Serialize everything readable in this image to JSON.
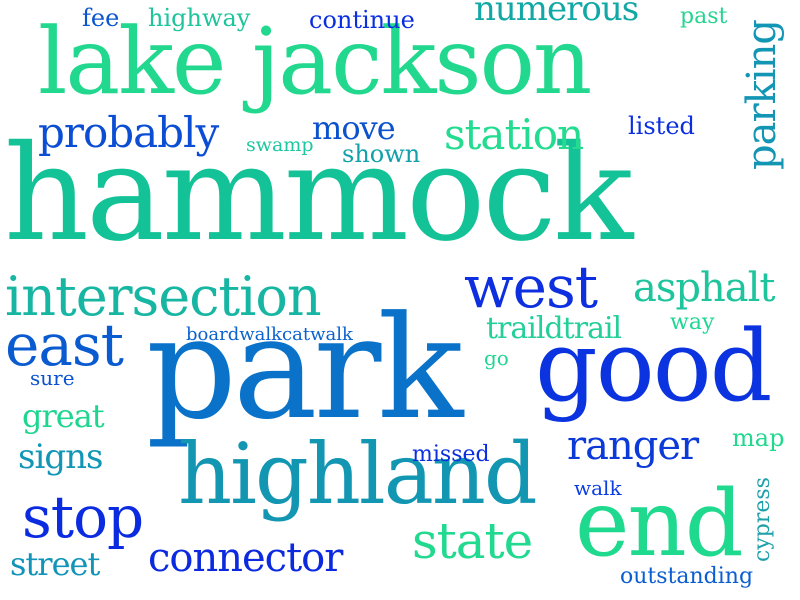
{
  "words": [
    {
      "text": "hammock",
      "color": "#13c296"
    },
    {
      "text": "lake jackson",
      "color": "#22d88e"
    },
    {
      "text": "park",
      "color": "#0a72c8"
    },
    {
      "text": "highland",
      "color": "#1296b2"
    },
    {
      "text": "good",
      "color": "#0b34e0"
    },
    {
      "text": "end",
      "color": "#1fda8e"
    },
    {
      "text": "intersection",
      "color": "#17b6a3"
    },
    {
      "text": "west",
      "color": "#0d2fdf"
    },
    {
      "text": "east",
      "color": "#0b5bd0"
    },
    {
      "text": "stop",
      "color": "#0b2be0"
    },
    {
      "text": "state",
      "color": "#21d98f"
    },
    {
      "text": "connector",
      "color": "#0b2ae0"
    },
    {
      "text": "asphalt",
      "color": "#1ec49c"
    },
    {
      "text": "ranger",
      "color": "#0b3ad9"
    },
    {
      "text": "probably",
      "color": "#0b4ed4"
    },
    {
      "text": "station",
      "color": "#23dc90"
    },
    {
      "text": "parking",
      "color": "#1296b4"
    },
    {
      "text": "numerous",
      "color": "#12a8a6"
    },
    {
      "text": "move",
      "color": "#0b52cc"
    },
    {
      "text": "traildtrail",
      "color": "#24cf9a"
    },
    {
      "text": "great",
      "color": "#1fd690"
    },
    {
      "text": "signs",
      "color": "#1196b6"
    },
    {
      "text": "street",
      "color": "#1294b8"
    },
    {
      "text": "outstanding",
      "color": "#0b5ed0"
    },
    {
      "text": "cypress",
      "color": "#1ea0aa"
    },
    {
      "text": "fee",
      "color": "#0b55ce"
    },
    {
      "text": "highway",
      "color": "#1ec49c"
    },
    {
      "text": "continue",
      "color": "#0b2fe0"
    },
    {
      "text": "past",
      "color": "#26d490"
    },
    {
      "text": "listed",
      "color": "#0b2ee0"
    },
    {
      "text": "swamp",
      "color": "#1fc6a0"
    },
    {
      "text": "shown",
      "color": "#12a0aa"
    },
    {
      "text": "boardwalkcatwalk",
      "color": "#0b62cc"
    },
    {
      "text": "way",
      "color": "#1fd692"
    },
    {
      "text": "go",
      "color": "#1fd692"
    },
    {
      "text": "sure",
      "color": "#0b52d0"
    },
    {
      "text": "missed",
      "color": "#0b2ee0"
    },
    {
      "text": "map",
      "color": "#22d88e"
    },
    {
      "text": "walk",
      "color": "#0b3ee0"
    }
  ]
}
